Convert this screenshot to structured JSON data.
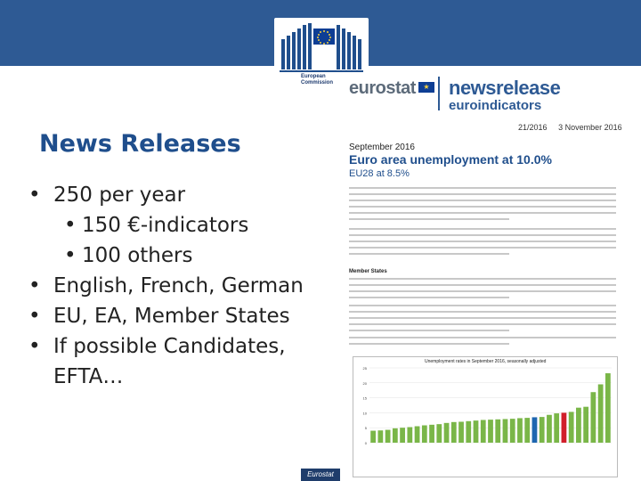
{
  "header": {
    "org_name_line1": "European",
    "org_name_line2": "Commission",
    "brand": "eurostat",
    "product": "newsrelease",
    "product_sub": "euroindicators"
  },
  "slide": {
    "title": "News Releases",
    "bullets": [
      "250 per year",
      "150 €-indicators",
      "100 others",
      "English, French, German",
      "EU, EA, Member States",
      "If possible Candidates,",
      "EFTA…"
    ]
  },
  "document": {
    "date1": "21/2016",
    "date2": "3 November 2016",
    "month": "September 2016",
    "headline": "Euro area unemployment at 10.0%",
    "subheadline": "EU28 at 8.5%",
    "section": "Member States"
  },
  "chart_data": {
    "type": "bar",
    "title": "Unemployment rates in September 2016, seasonally adjusted",
    "ylim": [
      0,
      25
    ],
    "yticks": [
      0,
      5,
      10,
      15,
      20,
      25
    ],
    "values": [
      4.0,
      4.1,
      4.3,
      4.8,
      5.0,
      5.2,
      5.5,
      5.8,
      6.0,
      6.2,
      6.6,
      6.9,
      7.0,
      7.2,
      7.4,
      7.6,
      7.7,
      7.8,
      7.9,
      8.0,
      8.2,
      8.3,
      8.5,
      8.6,
      9.3,
      9.8,
      10.0,
      10.3,
      11.7,
      12.0,
      16.9,
      19.5,
      23.2
    ],
    "highlight_colors": {
      "bar": "#7ab648",
      "eu": "#1e66b0",
      "ea": "#d11f2b"
    }
  },
  "footer": {
    "tag": "Eurostat"
  }
}
